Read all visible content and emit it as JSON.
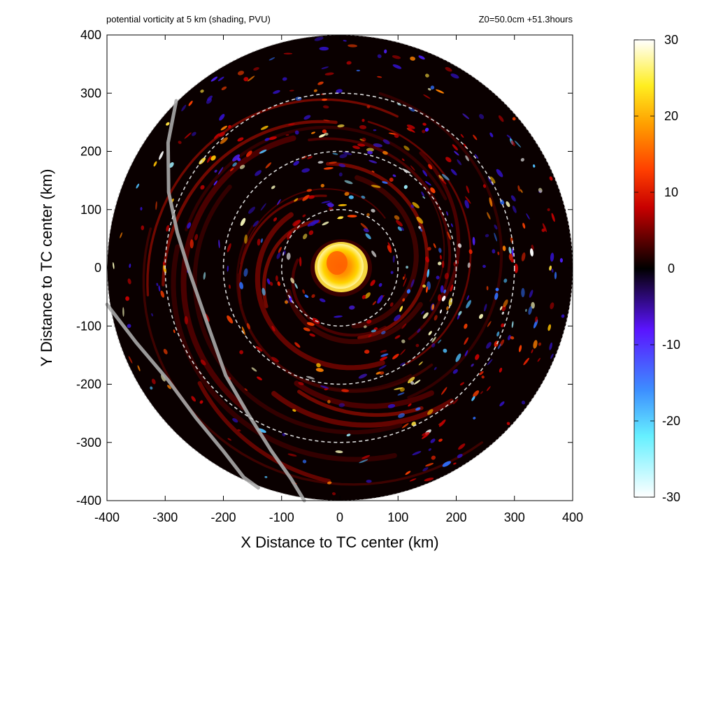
{
  "chart_data": {
    "type": "heatmap",
    "title": "potential vorticity at 5 km (shading, PVU)",
    "subtitle": "Z0=50.0cm  +51.3hours",
    "xlabel": "X Distance to TC center (km)",
    "ylabel": "Y Distance to TC center (km)",
    "xlim": [
      -400,
      400
    ],
    "ylim": [
      -400,
      400
    ],
    "xticks": [
      -400,
      -300,
      -200,
      -100,
      0,
      100,
      200,
      300,
      400
    ],
    "yticks": [
      -400,
      -300,
      -200,
      -100,
      0,
      100,
      200,
      300,
      400
    ],
    "xtick_labels": [
      "-400",
      "-300",
      "-200",
      "-100",
      "0",
      "100",
      "200",
      "300",
      "400"
    ],
    "ytick_labels": [
      "-400",
      "-300",
      "-200",
      "-100",
      "0",
      "100",
      "200",
      "300",
      "400"
    ],
    "domain_radius_km": 400,
    "range_rings_km": [
      100,
      200,
      300
    ],
    "colorbar": {
      "range": [
        -30,
        30
      ],
      "ticks": [
        30,
        20,
        10,
        0,
        -10,
        -20,
        -30
      ],
      "tick_labels": [
        "30",
        "20",
        "10",
        "0",
        "-10",
        "-20",
        "-30"
      ],
      "stops": [
        {
          "value": -30,
          "color": "#ffffff"
        },
        {
          "value": -22,
          "color": "#66f0ff"
        },
        {
          "value": -16,
          "color": "#3d8fff"
        },
        {
          "value": -8,
          "color": "#5a14ff"
        },
        {
          "value": -2,
          "color": "#1a0540"
        },
        {
          "value": 0,
          "color": "#000000"
        },
        {
          "value": 3,
          "color": "#4a0000"
        },
        {
          "value": 8,
          "color": "#c80000"
        },
        {
          "value": 13,
          "color": "#ff4000"
        },
        {
          "value": 19,
          "color": "#ffa000"
        },
        {
          "value": 24,
          "color": "#ffee20"
        },
        {
          "value": 30,
          "color": "#ffffff"
        }
      ]
    },
    "tracks": [
      {
        "points": [
          [
            -281,
            287
          ],
          [
            -295,
            215
          ],
          [
            -294,
            130
          ],
          [
            -279,
            60
          ],
          [
            -259,
            -5
          ],
          [
            -229,
            -92
          ],
          [
            -196,
            -185
          ],
          [
            -157,
            -252
          ],
          [
            -118,
            -314
          ],
          [
            -84,
            -362
          ],
          [
            -61,
            -400
          ]
        ]
      },
      {
        "points": [
          [
            -400,
            -63
          ],
          [
            -350,
            -128
          ],
          [
            -295,
            -193
          ],
          [
            -247,
            -258
          ],
          [
            -200,
            -315
          ],
          [
            -165,
            -360
          ],
          [
            -140,
            -378
          ]
        ]
      }
    ]
  }
}
